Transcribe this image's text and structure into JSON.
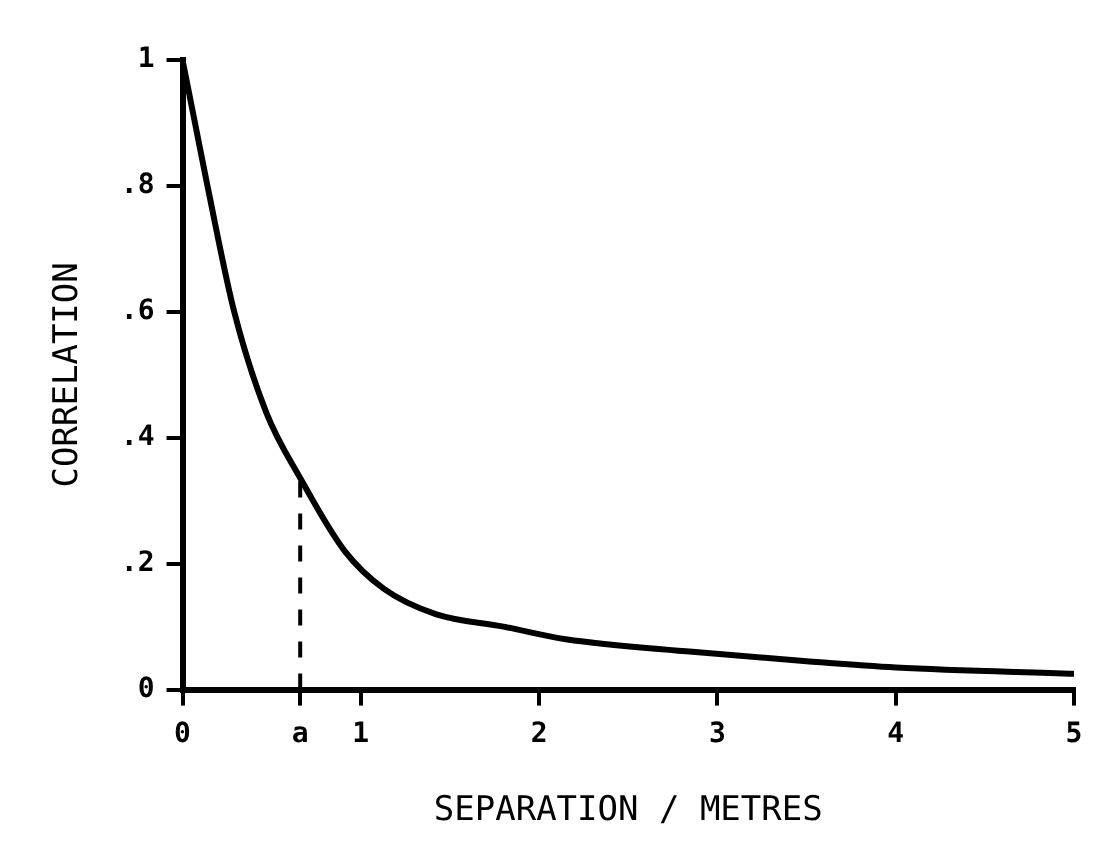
{
  "chart_data": {
    "type": "line",
    "xlabel": "SEPARATION / METRES",
    "ylabel": "CORRELATION",
    "x": [
      0,
      0.07,
      0.14,
      0.29,
      0.47,
      0.66,
      0.91,
      1.13,
      1.42,
      1.8,
      2.15,
      2.86,
      3.5,
      4,
      5
    ],
    "series": [
      {
        "color": "#000000",
        "values": [
          1,
          0.9,
          0.8,
          0.6,
          0.44,
          0.336,
          0.22,
          0.16,
          0.12,
          0.1,
          0.08,
          0.06,
          0.045,
          0.035,
          0.025
        ]
      }
    ],
    "xlim": [
      0,
      5
    ],
    "xticks": [
      0,
      {
        "value": 0.66,
        "label": "a"
      },
      1,
      2,
      3,
      4,
      5
    ],
    "ylim": [
      0,
      1
    ],
    "yticks": [
      0,
      {
        "value": 0.2,
        "label": ".2"
      },
      {
        "value": 0.4,
        "label": ".4"
      },
      {
        "value": 0.6,
        "label": ".6"
      },
      {
        "value": 0.8,
        "label": ".8"
      },
      1
    ],
    "ref_lines": [
      {
        "axis": "x",
        "value": 0.66,
        "line_style": "dashed",
        "color": "#000000"
      }
    ],
    "grid": false,
    "legend": false,
    "marker": "none",
    "line_style": "solid"
  }
}
